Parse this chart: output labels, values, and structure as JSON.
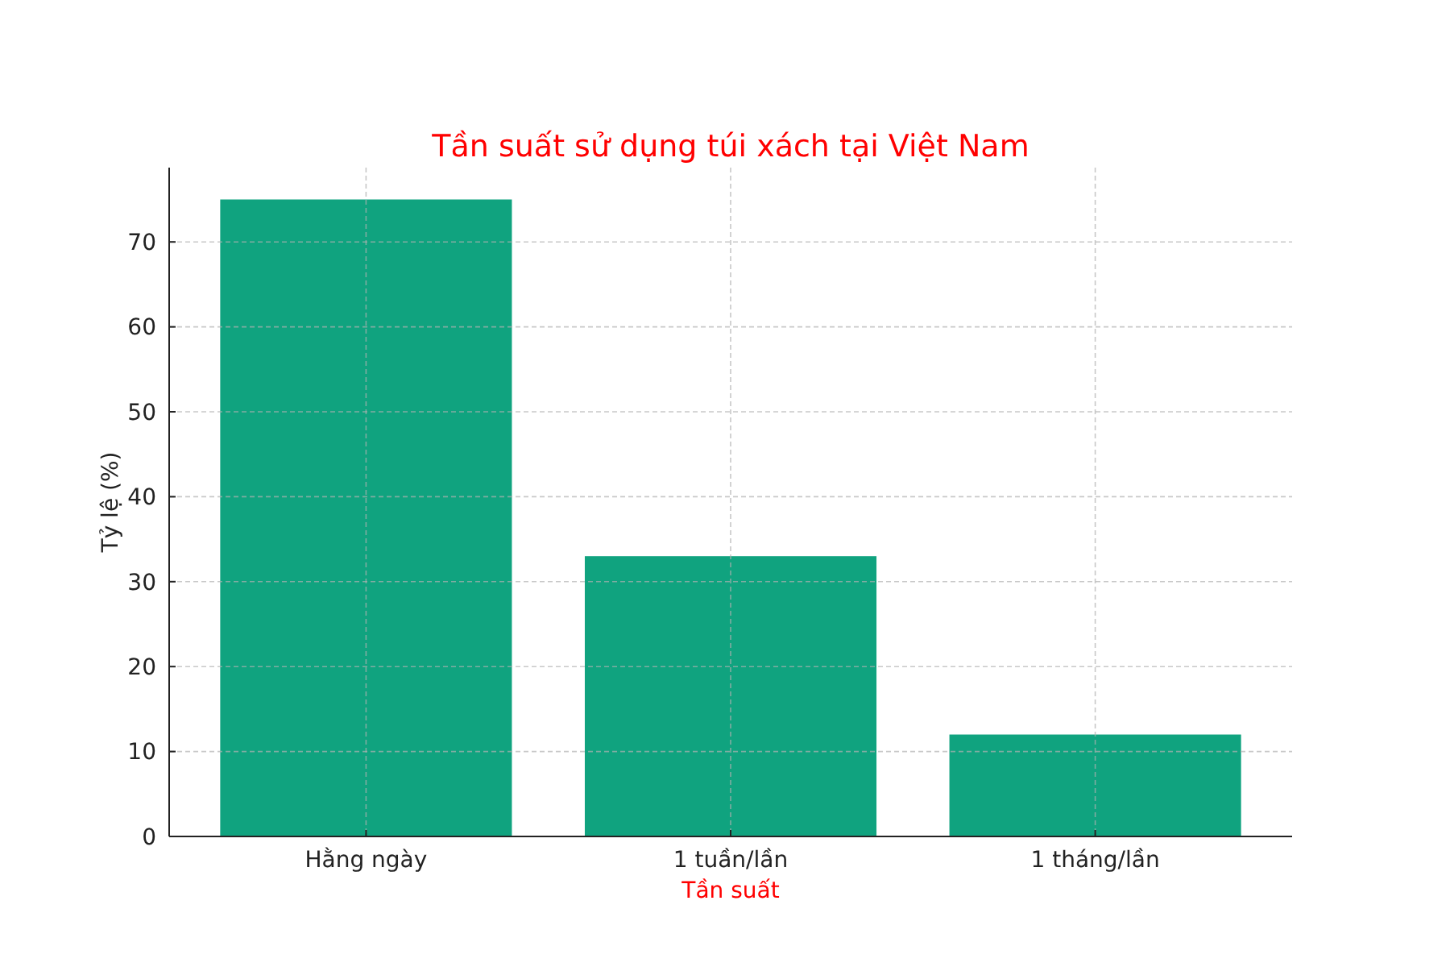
{
  "chart_data": {
    "type": "bar",
    "title": "Tần suất sử dụng túi xách tại Việt Nam",
    "xlabel": "Tần suất",
    "ylabel": "Tỷ lệ (%)",
    "categories": [
      "Hằng ngày",
      "1 tuần/lần",
      "1 tháng/lần"
    ],
    "values": [
      75,
      33,
      12
    ],
    "color": "#10a37f",
    "ylim": [
      0,
      78.75
    ],
    "yticks": [
      0,
      10,
      20,
      30,
      40,
      50,
      60,
      70
    ],
    "grid": true
  }
}
